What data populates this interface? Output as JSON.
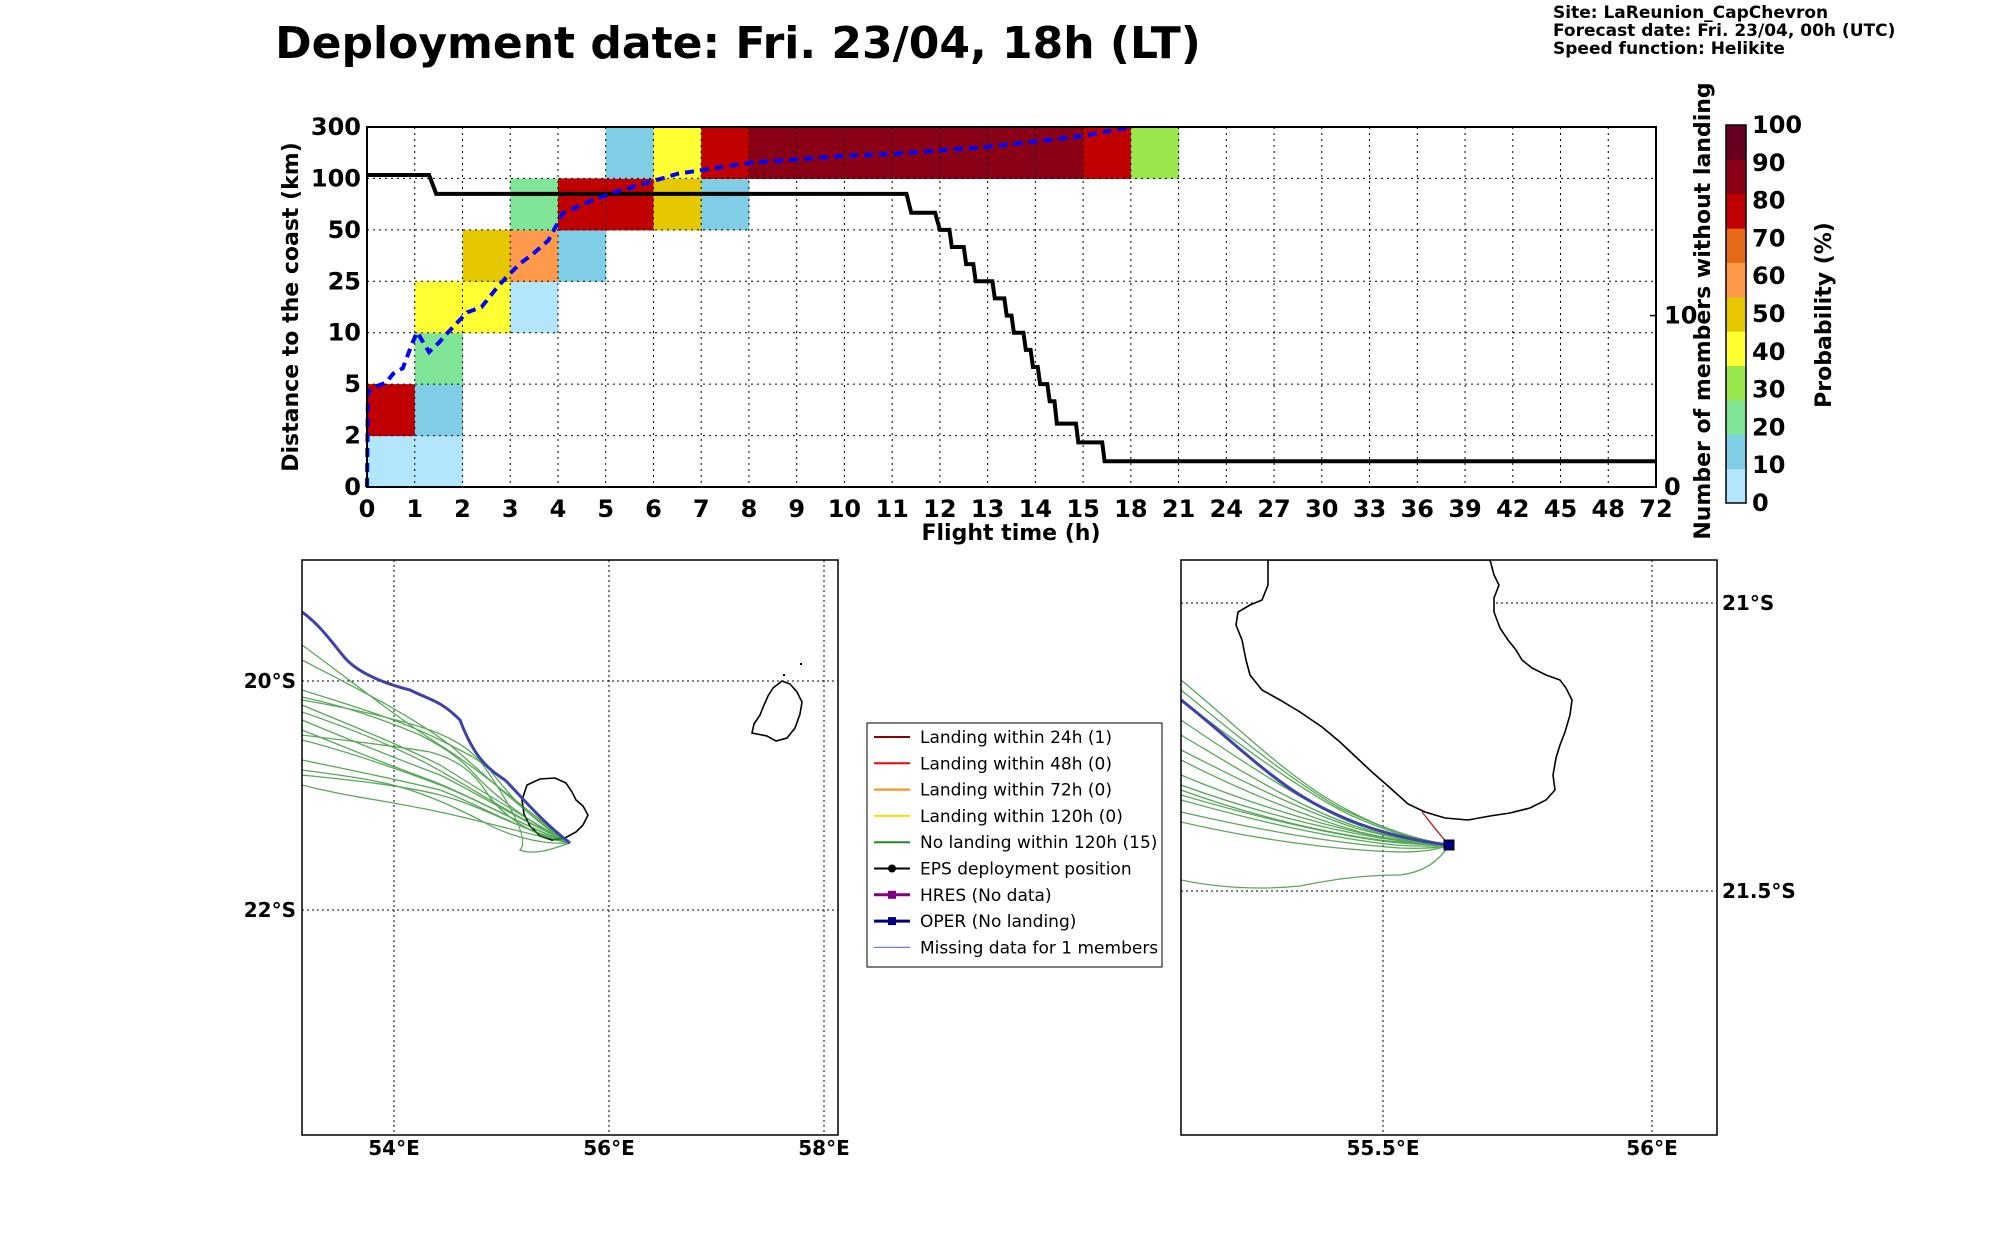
{
  "header": {
    "title": "Deployment date: Fri. 23/04, 18h (LT)",
    "site": "Site: LaReunion_CapChevron",
    "forecast": "Forecast date: Fri. 23/04, 00h (UTC)",
    "speed": "Speed function: Helikite"
  },
  "colorbar": {
    "label": "Probability (%)",
    "ticks": [
      "0",
      "10",
      "20",
      "30",
      "40",
      "50",
      "60",
      "70",
      "80",
      "90",
      "100"
    ],
    "colors": [
      "#b3e5fc",
      "#80cde6",
      "#80e596",
      "#9ae64d",
      "#ffff33",
      "#e5c800",
      "#ff9a4d",
      "#e56a1a",
      "#c00000",
      "#8a0016",
      "#65001e"
    ]
  },
  "chart_data": [
    {
      "type": "heatmap",
      "title": "",
      "xlabel": "Flight time (h)",
      "ylabel": "Distance to the coast (km)",
      "y2label": "Number of members without landing",
      "x_categories": [
        "0",
        "1",
        "2",
        "3",
        "4",
        "5",
        "6",
        "7",
        "8",
        "9",
        "10",
        "11",
        "12",
        "13",
        "14",
        "15",
        "18",
        "21",
        "24",
        "27",
        "30",
        "33",
        "36",
        "39",
        "42",
        "45",
        "48",
        "72"
      ],
      "y_categories": [
        "0",
        "2",
        "5",
        "10",
        "25",
        "50",
        "100",
        "300"
      ],
      "y2_ticks": [
        "0",
        "10"
      ],
      "y2_range": [
        0,
        21
      ],
      "cells": [
        {
          "x": 0,
          "y": 0,
          "p": 0
        },
        {
          "x": 1,
          "y": 0,
          "p": 0
        },
        {
          "x": 0,
          "y": 1,
          "p": 80
        },
        {
          "x": 1,
          "y": 1,
          "p": 10
        },
        {
          "x": 1,
          "y": 2,
          "p": 20
        },
        {
          "x": 1,
          "y": 3,
          "p": 40
        },
        {
          "x": 2,
          "y": 3,
          "p": 40
        },
        {
          "x": 3,
          "y": 3,
          "p": 0
        },
        {
          "x": 2,
          "y": 4,
          "p": 50
        },
        {
          "x": 3,
          "y": 4,
          "p": 60
        },
        {
          "x": 4,
          "y": 4,
          "p": 10
        },
        {
          "x": 3,
          "y": 5,
          "p": 20
        },
        {
          "x": 4,
          "y": 5,
          "p": 80
        },
        {
          "x": 5,
          "y": 5,
          "p": 80
        },
        {
          "x": 6,
          "y": 5,
          "p": 50
        },
        {
          "x": 7,
          "y": 5,
          "p": 10
        },
        {
          "x": 5,
          "y": 6,
          "p": 10
        },
        {
          "x": 6,
          "y": 6,
          "p": 40
        },
        {
          "x": 7,
          "y": 6,
          "p": 80
        },
        {
          "x": 8,
          "y": 6,
          "p": 90
        },
        {
          "x": 9,
          "y": 6,
          "p": 90
        },
        {
          "x": 10,
          "y": 6,
          "p": 90
        },
        {
          "x": 11,
          "y": 6,
          "p": 90
        },
        {
          "x": 12,
          "y": 6,
          "p": 90
        },
        {
          "x": 13,
          "y": 6,
          "p": 90
        },
        {
          "x": 14,
          "y": 6,
          "p": 90
        },
        {
          "x": 15,
          "y": 6,
          "p": 80
        },
        {
          "x": 16,
          "y": 6,
          "p": 30
        }
      ],
      "median_distance": [
        [
          0,
          0
        ],
        [
          0.02,
          5.3
        ],
        [
          0.2,
          5.6
        ],
        [
          0.4,
          5.8
        ],
        [
          0.55,
          6.3
        ],
        [
          0.75,
          6.6
        ],
        [
          0.95,
          8
        ],
        [
          1.05,
          8.6
        ],
        [
          1.3,
          7.5
        ],
        [
          1.5,
          8
        ],
        [
          1.7,
          8.6
        ],
        [
          1.95,
          9.3
        ],
        [
          2.1,
          9.7
        ],
        [
          2.4,
          10
        ],
        [
          2.7,
          11
        ],
        [
          2.9,
          11.6
        ],
        [
          3.2,
          12.4
        ],
        [
          3.5,
          13
        ],
        [
          3.8,
          13.7
        ],
        [
          4.1,
          15.2
        ],
        [
          4.6,
          15.8
        ],
        [
          5.1,
          16.3
        ],
        [
          5.6,
          16.7
        ],
        [
          6.0,
          17.0
        ],
        [
          6.5,
          17.4
        ],
        [
          7.0,
          17.6
        ],
        [
          7.5,
          17.8
        ],
        [
          8.0,
          18.0
        ],
        [
          9,
          18.2
        ],
        [
          10,
          18.4
        ],
        [
          11,
          18.5
        ],
        [
          12,
          18.7
        ],
        [
          13,
          18.9
        ],
        [
          14,
          19.2
        ],
        [
          15,
          19.5
        ],
        [
          16.0,
          20.0
        ]
      ],
      "members_without_landing": [
        [
          0,
          18.2
        ],
        [
          1.3,
          18.2
        ],
        [
          1.45,
          17.1
        ],
        [
          11.3,
          17.1
        ],
        [
          11.4,
          16.0
        ],
        [
          11.9,
          16.0
        ],
        [
          12.0,
          15.0
        ],
        [
          12.2,
          15.0
        ],
        [
          12.25,
          14.0
        ],
        [
          12.5,
          14.0
        ],
        [
          12.55,
          13.0
        ],
        [
          12.7,
          13.0
        ],
        [
          12.75,
          12.0
        ],
        [
          13.1,
          12.0
        ],
        [
          13.15,
          11.0
        ],
        [
          13.35,
          11.0
        ],
        [
          13.4,
          10.0
        ],
        [
          13.5,
          10.0
        ],
        [
          13.55,
          9.0
        ],
        [
          13.75,
          9.0
        ],
        [
          13.8,
          8.0
        ],
        [
          13.9,
          8.0
        ],
        [
          13.95,
          7.0
        ],
        [
          14.05,
          7.0
        ],
        [
          14.1,
          6.0
        ],
        [
          14.25,
          6.0
        ],
        [
          14.3,
          5.0
        ],
        [
          14.4,
          5.0
        ],
        [
          14.45,
          3.7
        ],
        [
          14.85,
          3.7
        ],
        [
          14.9,
          2.6
        ],
        [
          15.4,
          2.6
        ],
        [
          15.45,
          1.5
        ],
        [
          27,
          1.5
        ]
      ]
    }
  ],
  "maps": {
    "left": {
      "lon_ticks": [
        "54°E",
        "56°E",
        "58°E"
      ],
      "lat_ticks": [
        "20°S",
        "22°S"
      ]
    },
    "right": {
      "lon_ticks": [
        "55.5°E",
        "56°E"
      ],
      "lat_ticks": [
        "21°S",
        "21.5°S"
      ]
    }
  },
  "legend": [
    {
      "label": "Landing within 24h (1)",
      "color": "#8b0000",
      "marker": "none",
      "width": 2
    },
    {
      "label": "Landing within 48h (0)",
      "color": "#ff0000",
      "marker": "none",
      "width": 2
    },
    {
      "label": "Landing within 72h (0)",
      "color": "#ff8c00",
      "marker": "none",
      "width": 2
    },
    {
      "label": "Landing within 120h (0)",
      "color": "#ffd700",
      "marker": "none",
      "width": 2
    },
    {
      "label": "No landing within 120h (15)",
      "color": "#228b22",
      "marker": "none",
      "width": 2
    },
    {
      "label": "EPS deployment position",
      "color": "#000000",
      "marker": "circle",
      "width": 2
    },
    {
      "label": "HRES (No data)",
      "color": "#800080",
      "marker": "square",
      "width": 3
    },
    {
      "label": "OPER (No landing)",
      "color": "#000080",
      "marker": "square",
      "width": 3
    },
    {
      "label": "Missing data for 1 members",
      "color": "#4a5cff",
      "marker": "none",
      "width": 1
    }
  ],
  "colors": {
    "median": "#0000ff",
    "members": "#000000",
    "eps_track": "#228b22",
    "oper_track": "#3d43a8"
  }
}
